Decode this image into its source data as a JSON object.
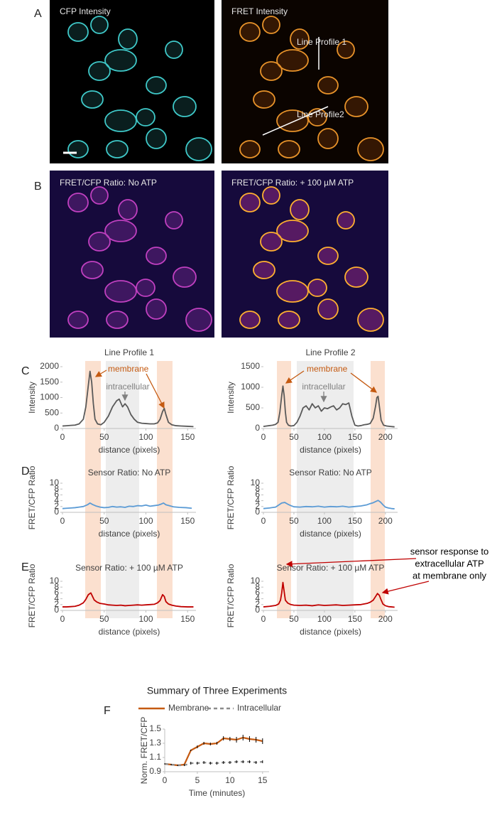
{
  "panel_labels": [
    "A",
    "B",
    "C",
    "D",
    "E",
    "F"
  ],
  "images": [
    {
      "label": "CFP Intensity"
    },
    {
      "label": "FRET Intensity"
    },
    {
      "label": "FRET/CFP Ratio: No ATP"
    },
    {
      "label": "FRET/CFP Ratio: + 100 µM ATP"
    }
  ],
  "image_annotations": [
    "Line Profile 1",
    "Line Profile2"
  ],
  "chart_data": [
    {
      "type": "line",
      "title": "Line Profile 1",
      "xlabel": "distance (pixels)",
      "ylabel": "Intensity",
      "color": "#595959",
      "x": [
        0,
        5,
        10,
        15,
        20,
        25,
        28,
        31,
        33,
        35,
        37,
        39,
        42,
        46,
        50,
        55,
        60,
        65,
        68,
        72,
        75,
        78,
        82,
        86,
        90,
        95,
        100,
        105,
        110,
        114,
        117,
        120,
        122,
        124,
        127,
        131,
        136,
        142,
        150,
        157
      ],
      "values": [
        80,
        90,
        100,
        110,
        150,
        300,
        700,
        1400,
        1850,
        1500,
        800,
        300,
        150,
        120,
        200,
        400,
        700,
        900,
        950,
        700,
        800,
        700,
        450,
        300,
        200,
        170,
        160,
        150,
        150,
        180,
        300,
        550,
        650,
        450,
        200,
        120,
        90,
        80,
        70,
        60
      ],
      "xlim": [
        0,
        160
      ],
      "ylim": [
        0,
        2000
      ],
      "xticks": [
        0,
        50,
        100,
        150
      ],
      "yticks": [
        0,
        500,
        1000,
        1500,
        2000
      ],
      "annotations": [
        "membrane",
        "intracellular"
      ]
    },
    {
      "type": "line",
      "title": "Line Profile 2",
      "xlabel": "distance (pixels)",
      "ylabel": "Intensity",
      "color": "#595959",
      "x": [
        0,
        5,
        10,
        15,
        20,
        24,
        27,
        30,
        32,
        34,
        36,
        38,
        41,
        45,
        50,
        55,
        60,
        65,
        70,
        75,
        80,
        85,
        90,
        95,
        100,
        105,
        110,
        115,
        120,
        125,
        130,
        135,
        140,
        145,
        150,
        155,
        160,
        165,
        170,
        175,
        180,
        184,
        186,
        188,
        190,
        193,
        197,
        202,
        208,
        215
      ],
      "values": [
        50,
        60,
        70,
        80,
        100,
        150,
        400,
        800,
        1030,
        800,
        400,
        150,
        80,
        60,
        70,
        150,
        300,
        500,
        550,
        450,
        600,
        500,
        550,
        420,
        500,
        480,
        520,
        550,
        450,
        500,
        600,
        580,
        620,
        300,
        80,
        60,
        70,
        90,
        100,
        120,
        250,
        550,
        750,
        780,
        550,
        200,
        80,
        60,
        50,
        40
      ],
      "xlim": [
        0,
        220
      ],
      "ylim": [
        0,
        1500
      ],
      "xticks": [
        0,
        50,
        100,
        150,
        200
      ],
      "yticks": [
        0,
        500,
        1000,
        1500
      ],
      "annotations": [
        "membrane",
        "intracellular"
      ]
    },
    {
      "type": "line",
      "title": "Sensor Ratio: No ATP",
      "xlabel": "distance (pixels)",
      "ylabel": "FRET/CFP Ratio",
      "color": "#5b9bd5",
      "x": [
        0,
        5,
        10,
        15,
        20,
        25,
        30,
        33,
        36,
        40,
        45,
        50,
        55,
        60,
        65,
        70,
        75,
        80,
        85,
        90,
        95,
        100,
        105,
        110,
        115,
        118,
        121,
        124,
        128,
        133,
        140,
        148,
        155
      ],
      "values": [
        1.3,
        1.4,
        1.5,
        1.6,
        1.8,
        2.0,
        2.6,
        3.2,
        2.7,
        2.2,
        1.8,
        1.6,
        1.7,
        2.0,
        1.8,
        1.9,
        1.7,
        2.1,
        2.0,
        2.3,
        2.2,
        2.5,
        2.1,
        2.3,
        2.5,
        2.8,
        3.2,
        2.6,
        2.3,
        1.9,
        1.7,
        1.6,
        1.4
      ],
      "xlim": [
        0,
        160
      ],
      "ylim": [
        0,
        10
      ],
      "xticks": [
        0,
        50,
        100,
        150
      ],
      "yticks": [
        0,
        2,
        4,
        6,
        8,
        10
      ]
    },
    {
      "type": "line",
      "title": "Sensor Ratio: No ATP",
      "xlabel": "distance (pixels)",
      "ylabel": "FRET/CFP Ratio",
      "color": "#5b9bd5",
      "x": [
        0,
        10,
        20,
        25,
        30,
        35,
        40,
        45,
        50,
        60,
        70,
        80,
        90,
        100,
        110,
        120,
        130,
        140,
        150,
        160,
        170,
        175,
        180,
        185,
        188,
        192,
        196,
        200,
        205,
        210,
        215
      ],
      "values": [
        1.3,
        1.5,
        1.8,
        2.5,
        3.2,
        3.4,
        2.8,
        2.3,
        1.9,
        1.8,
        2.0,
        1.9,
        2.1,
        1.8,
        2.0,
        1.9,
        2.1,
        1.8,
        2.0,
        2.2,
        2.6,
        3.0,
        3.3,
        3.8,
        4.1,
        3.5,
        2.6,
        1.8,
        1.5,
        1.3,
        1.2
      ],
      "xlim": [
        0,
        220
      ],
      "ylim": [
        0,
        10
      ],
      "xticks": [
        0,
        50,
        100,
        150,
        200
      ],
      "yticks": [
        0,
        2,
        4,
        6,
        8,
        10
      ]
    },
    {
      "type": "line",
      "title": "Sensor Ratio: + 100 µM ATP",
      "xlabel": "distance (pixels)",
      "ylabel": "FRET/CFP Ratio",
      "color": "#c00000",
      "x": [
        0,
        5,
        10,
        15,
        20,
        25,
        28,
        31,
        34,
        36,
        38,
        41,
        45,
        50,
        55,
        60,
        65,
        70,
        75,
        80,
        85,
        90,
        95,
        100,
        105,
        110,
        114,
        117,
        120,
        122,
        124,
        127,
        131,
        136,
        142,
        150,
        157
      ],
      "values": [
        1.2,
        1.2,
        1.3,
        1.4,
        1.8,
        2.6,
        3.8,
        5.4,
        6.0,
        4.8,
        3.6,
        2.9,
        2.4,
        2.2,
        1.9,
        1.8,
        1.7,
        1.8,
        1.6,
        1.7,
        1.8,
        1.9,
        1.8,
        1.9,
        2.0,
        2.1,
        2.6,
        3.4,
        5.4,
        4.8,
        3.0,
        2.2,
        1.8,
        1.5,
        1.3,
        1.2,
        1.2
      ],
      "xlim": [
        0,
        160
      ],
      "ylim": [
        0,
        10
      ],
      "xticks": [
        0,
        50,
        100,
        150
      ],
      "yticks": [
        0,
        2,
        4,
        6,
        8,
        10
      ]
    },
    {
      "type": "line",
      "title": "Sensor Ratio: + 100 µM ATP",
      "xlabel": "distance (pixels)",
      "ylabel": "FRET/CFP Ratio",
      "color": "#c00000",
      "x": [
        0,
        10,
        20,
        25,
        28,
        30,
        32,
        34,
        36,
        40,
        45,
        50,
        60,
        70,
        80,
        90,
        100,
        110,
        120,
        130,
        140,
        150,
        160,
        170,
        175,
        180,
        184,
        187,
        190,
        193,
        196,
        200,
        205,
        210,
        215
      ],
      "values": [
        1.2,
        1.4,
        1.7,
        2.2,
        3.5,
        6.0,
        9.6,
        6.5,
        3.5,
        2.5,
        2.0,
        1.8,
        1.7,
        1.8,
        1.6,
        1.9,
        1.7,
        1.8,
        1.9,
        1.7,
        1.8,
        1.9,
        2.0,
        2.4,
        2.8,
        3.5,
        4.8,
        5.8,
        5.2,
        3.6,
        2.2,
        1.6,
        1.3,
        1.2,
        1.1
      ],
      "xlim": [
        0,
        220
      ],
      "ylim": [
        0,
        10
      ],
      "xticks": [
        0,
        50,
        100,
        150,
        200
      ],
      "yticks": [
        0,
        2,
        4,
        6,
        8,
        10
      ],
      "annotation": [
        "sensor response to",
        "extracellular ATP",
        "at membrane only"
      ]
    },
    {
      "type": "line",
      "title": "Summary of Three Experiments",
      "xlabel": "Time (minutes)",
      "ylabel": "Norm. FRET/CFP",
      "x": [
        0,
        1,
        2,
        3,
        4,
        5,
        6,
        7,
        8,
        9,
        10,
        11,
        12,
        13,
        14,
        15
      ],
      "series": [
        {
          "name": "Membrane",
          "color": "#c55a11",
          "dashed": false,
          "values": [
            1.01,
            1.0,
            0.99,
            1.0,
            1.2,
            1.25,
            1.3,
            1.29,
            1.3,
            1.37,
            1.36,
            1.35,
            1.38,
            1.36,
            1.35,
            1.33
          ],
          "errors": [
            0.01,
            0.01,
            0.01,
            0.01,
            0.01,
            0.02,
            0.02,
            0.02,
            0.02,
            0.03,
            0.03,
            0.04,
            0.04,
            0.04,
            0.04,
            0.04
          ]
        },
        {
          "name": "Intracellular",
          "color": "#8c8c8c",
          "dashed": true,
          "values": [
            1.01,
            1.0,
            0.99,
            0.99,
            1.02,
            1.02,
            1.03,
            1.02,
            1.02,
            1.03,
            1.03,
            1.04,
            1.04,
            1.04,
            1.03,
            1.04
          ],
          "errors": [
            0.01,
            0.01,
            0.01,
            0.01,
            0.02,
            0.02,
            0.02,
            0.02,
            0.02,
            0.02,
            0.02,
            0.02,
            0.02,
            0.02,
            0.02,
            0.02
          ]
        }
      ],
      "xlim": [
        0,
        16
      ],
      "ylim": [
        0.9,
        1.5
      ],
      "xticks": [
        0,
        5,
        10,
        15
      ],
      "yticks": [
        0.9,
        1.1,
        1.3,
        1.5
      ]
    }
  ]
}
